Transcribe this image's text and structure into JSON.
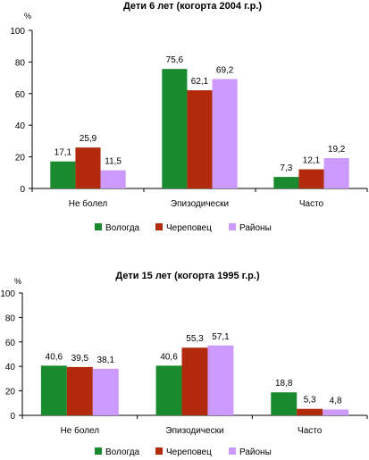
{
  "chart_data": [
    {
      "type": "bar",
      "title": "Дети 6 лет (когорта 2004 г.р.)",
      "ylabel": "%",
      "ylim": [
        0,
        100
      ],
      "yticks": [
        "0",
        "20",
        "40",
        "60",
        "80",
        "100"
      ],
      "categories": [
        "Не болел",
        "Эпизодически",
        "Часто"
      ],
      "series": [
        {
          "name": "Вологда",
          "color": "#1a8a2e",
          "values": [
            17.1,
            75.6,
            7.3
          ],
          "labels": [
            "17,1",
            "75,6",
            "7,3"
          ]
        },
        {
          "name": "Череповец",
          "color": "#b22a0c",
          "values": [
            25.9,
            62.1,
            12.1
          ],
          "labels": [
            "25,9",
            "62,1",
            "12,1"
          ]
        },
        {
          "name": "Районы",
          "color": "#cc99ff",
          "values": [
            11.5,
            69.2,
            19.2
          ],
          "labels": [
            "11,5",
            "69,2",
            "19,2"
          ]
        }
      ],
      "legend": "bottom"
    },
    {
      "type": "bar",
      "title": "Дети 15 лет (когорта 1995 г.р.)",
      "ylabel": "%",
      "ylim": [
        0,
        100
      ],
      "yticks": [
        "0",
        "20",
        "40",
        "60",
        "80",
        "100"
      ],
      "categories": [
        "Не болел",
        "Эпизодически",
        "Часто"
      ],
      "series": [
        {
          "name": "Вологда",
          "color": "#1a8a2e",
          "values": [
            40.6,
            40.6,
            18.8
          ],
          "labels": [
            "40,6",
            "40,6",
            "18,8"
          ]
        },
        {
          "name": "Череповец",
          "color": "#b22a0c",
          "values": [
            39.5,
            55.3,
            5.3
          ],
          "labels": [
            "39,5",
            "55,3",
            "5,3"
          ]
        },
        {
          "name": "Районы",
          "color": "#cc99ff",
          "values": [
            38.1,
            57.1,
            4.8
          ],
          "labels": [
            "38,1",
            "57,1",
            "4,8"
          ]
        }
      ],
      "legend": "bottom"
    }
  ]
}
